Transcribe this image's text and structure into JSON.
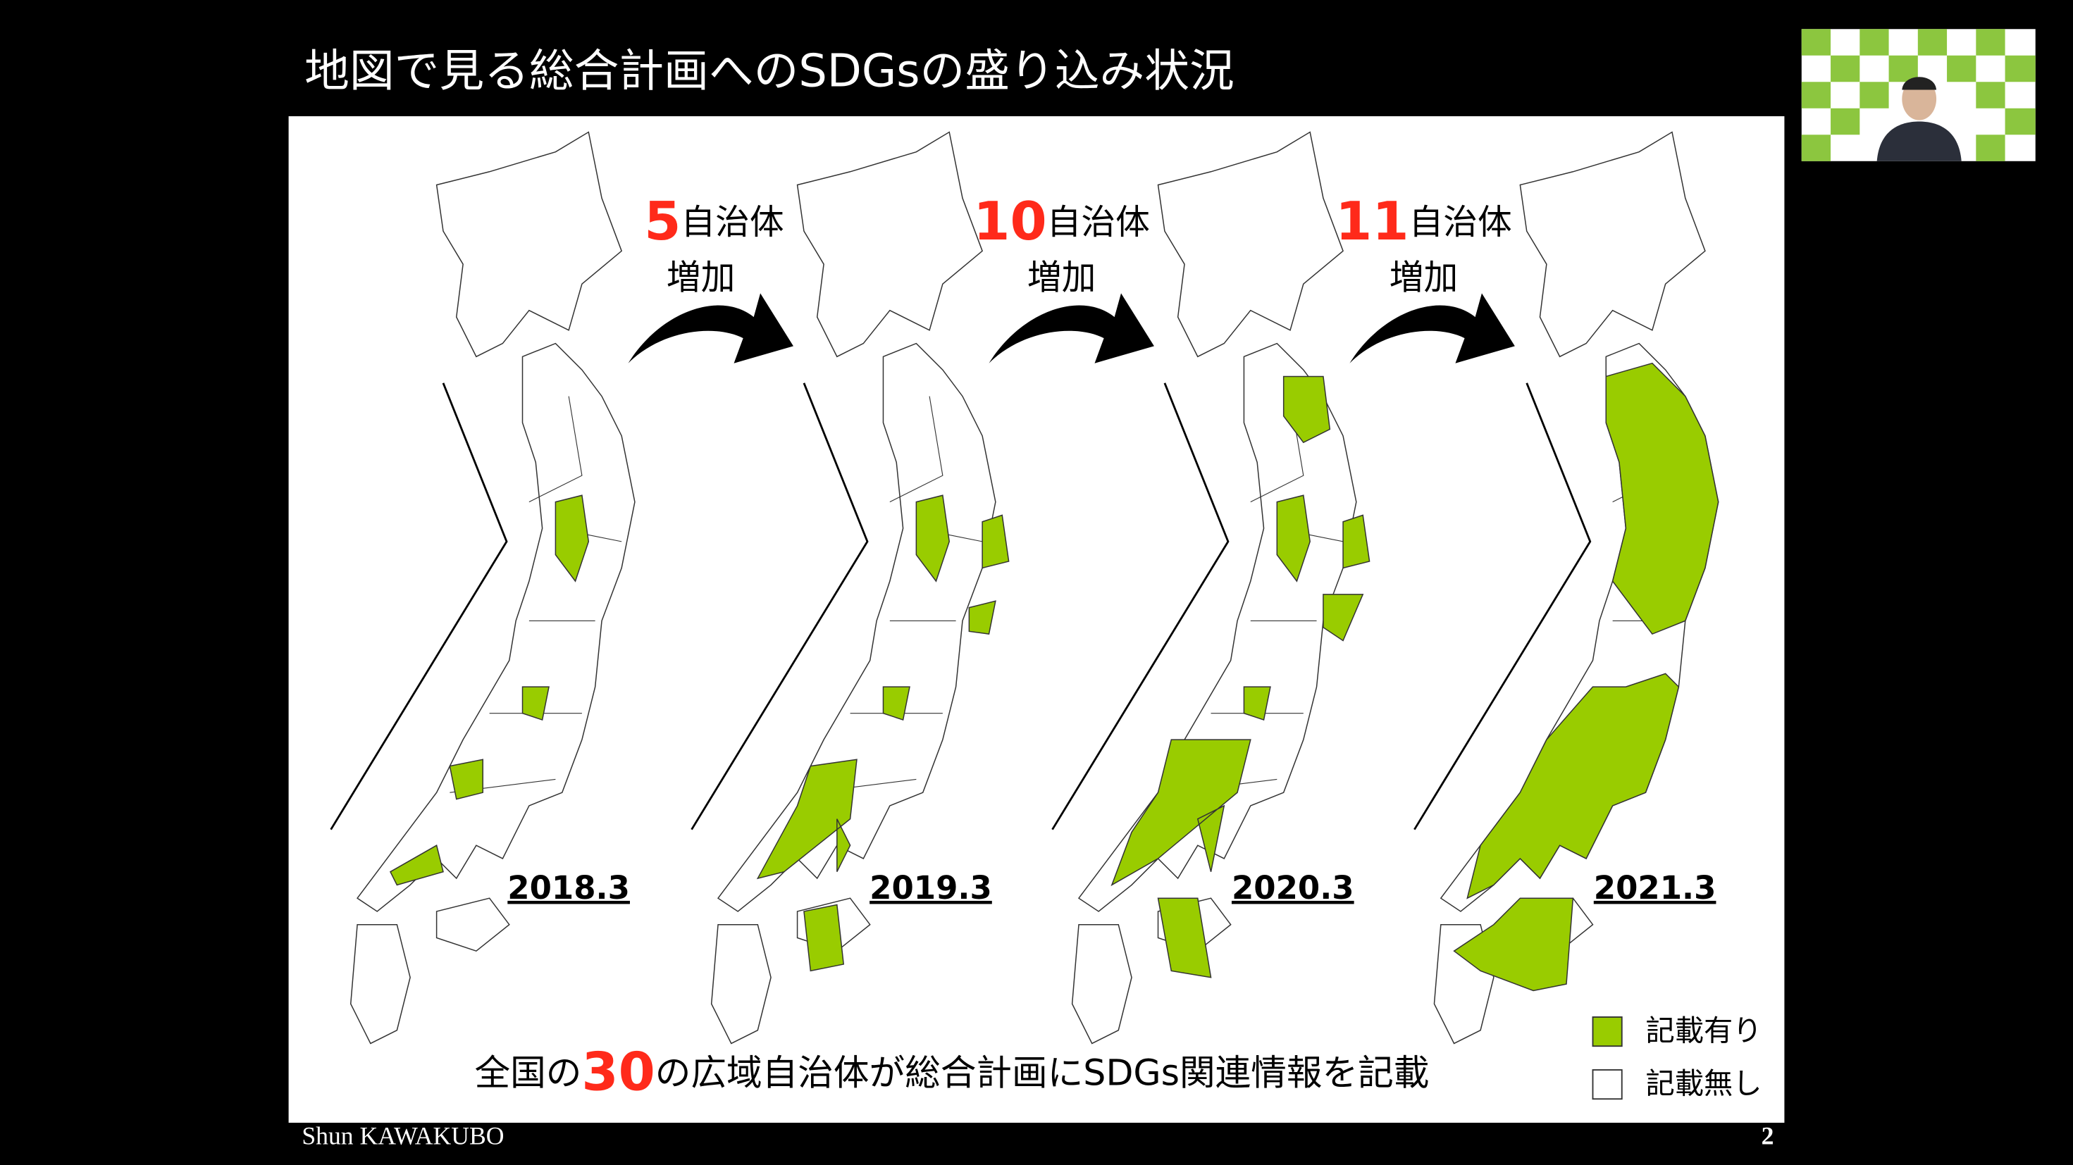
{
  "header": {
    "title": "地図で見る総合計画へのSDGsの盛り込み状況"
  },
  "increments": [
    {
      "number": "5",
      "unit": "自治体",
      "label": "増加"
    },
    {
      "number": "10",
      "unit": "自治体",
      "label": "増加"
    },
    {
      "number": "11",
      "unit": "自治体",
      "label": "増加"
    }
  ],
  "maps": [
    {
      "label": "2018.3"
    },
    {
      "label": "2019.3"
    },
    {
      "label": "2020.3"
    },
    {
      "label": "2021.3"
    }
  ],
  "summary": {
    "prefix": "全国の",
    "number": "30",
    "suffix": "の広域自治体が総合計画にSDGs関連情報を記載"
  },
  "legend": {
    "with": "記載有り",
    "without": "記載無し"
  },
  "footer": {
    "author": "Shun KAWAKUBO",
    "page": "2"
  }
}
